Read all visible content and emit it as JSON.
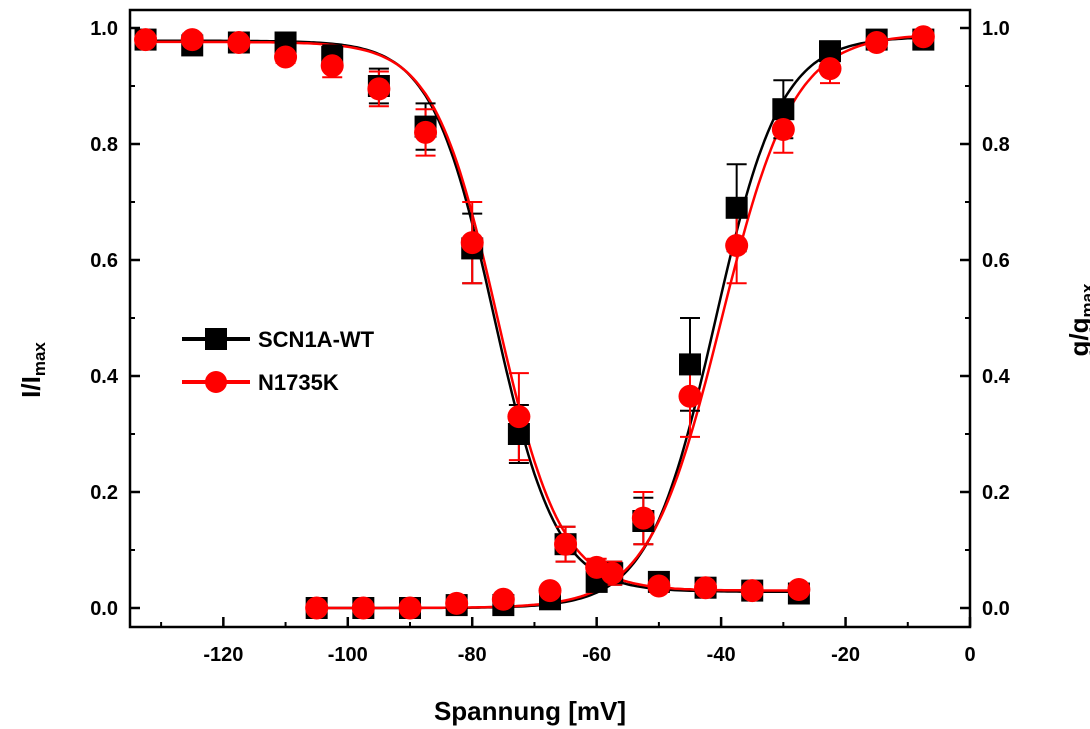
{
  "chart_data": {
    "type": "scatter",
    "title": "",
    "xlabel": "Spannung [mV]",
    "ylabel_left": {
      "main": "I/I",
      "sub": "max"
    },
    "ylabel_right": {
      "main": "g/g",
      "sub": "max"
    },
    "xlim": [
      -135,
      0
    ],
    "ylim": [
      -0.03,
      1.02
    ],
    "x_ticks": [
      -120,
      -100,
      -80,
      -60,
      -40,
      -20,
      0
    ],
    "x_tick_labels": [
      "-120",
      "-100",
      "-80",
      "-60",
      "-40",
      "-20",
      "0"
    ],
    "y_ticks": [
      0.0,
      0.2,
      0.4,
      0.6,
      0.8,
      1.0
    ],
    "y_tick_labels": [
      "0.0",
      "0.2",
      "0.4",
      "0.6",
      "0.8",
      "1.0"
    ],
    "grid": false,
    "legend_position": "center-left",
    "series": [
      {
        "name": "SCN1A-WT",
        "color": "#000000",
        "marker": "square",
        "inactivation": {
          "x": [
            -132.5,
            -125,
            -117.5,
            -110,
            -102.5,
            -95,
            -87.5,
            -80,
            -72.5,
            -65,
            -57.5
          ],
          "y": [
            0.98,
            0.97,
            0.975,
            0.975,
            0.95,
            0.9,
            0.83,
            0.62,
            0.3,
            0.11,
            0.06
          ],
          "err": [
            0.01,
            0.01,
            0.01,
            0.01,
            0.02,
            0.03,
            0.04,
            0.06,
            0.05,
            0.03,
            0.02
          ]
        },
        "activation": {
          "x": [
            -105,
            -97.5,
            -90,
            -82.5,
            -75,
            -67.5,
            -60,
            -52.5,
            -45,
            -37.5,
            -30,
            -22.5,
            -15,
            -7.5
          ],
          "y": [
            0.0,
            0.0,
            0.0,
            0.005,
            0.005,
            0.015,
            0.045,
            0.15,
            0.42,
            0.69,
            0.86,
            0.96,
            0.98,
            0.98
          ],
          "err": [
            0.003,
            0.003,
            0.003,
            0.005,
            0.005,
            0.008,
            0.015,
            0.04,
            0.08,
            0.075,
            0.05,
            0.015,
            0.01,
            0.01
          ]
        },
        "tail": {
          "x": [
            -50,
            -42.5,
            -35,
            -27.5
          ],
          "y": [
            0.045,
            0.035,
            0.03,
            0.025
          ],
          "err": [
            0.01,
            0.01,
            0.01,
            0.01
          ]
        },
        "inactivation_fit": {
          "v_half": -76.5,
          "k": 5.0,
          "top": 0.978
        },
        "activation_fit": {
          "v_half": -41.0,
          "k": 5.3,
          "top": 0.985
        }
      },
      {
        "name": "N1735K",
        "color": "#ff0000",
        "marker": "circle",
        "inactivation": {
          "x": [
            -132.5,
            -125,
            -117.5,
            -110,
            -102.5,
            -95,
            -87.5,
            -80,
            -72.5,
            -65,
            -57.5
          ],
          "y": [
            0.98,
            0.98,
            0.975,
            0.95,
            0.935,
            0.895,
            0.82,
            0.63,
            0.33,
            0.11,
            0.06
          ],
          "err": [
            0.01,
            0.01,
            0.01,
            0.01,
            0.02,
            0.03,
            0.04,
            0.07,
            0.075,
            0.03,
            0.02
          ]
        },
        "activation": {
          "x": [
            -105,
            -97.5,
            -90,
            -82.5,
            -75,
            -67.5,
            -60,
            -52.5,
            -45,
            -37.5,
            -30,
            -22.5,
            -15,
            -7.5
          ],
          "y": [
            0.0,
            0.0,
            0.0,
            0.008,
            0.015,
            0.03,
            0.07,
            0.155,
            0.365,
            0.625,
            0.825,
            0.93,
            0.975,
            0.985
          ],
          "err": [
            0.003,
            0.003,
            0.003,
            0.005,
            0.005,
            0.008,
            0.015,
            0.045,
            0.07,
            0.065,
            0.04,
            0.025,
            0.01,
            0.01
          ]
        },
        "tail": {
          "x": [
            -50,
            -42.5,
            -35,
            -27.5
          ],
          "y": [
            0.038,
            0.035,
            0.03,
            0.032
          ],
          "err": [
            0.01,
            0.01,
            0.01,
            0.01
          ]
        },
        "inactivation_fit": {
          "v_half": -76.0,
          "k": 5.1,
          "top": 0.976
        },
        "activation_fit": {
          "v_half": -40.0,
          "k": 5.8,
          "top": 0.99
        }
      }
    ]
  }
}
